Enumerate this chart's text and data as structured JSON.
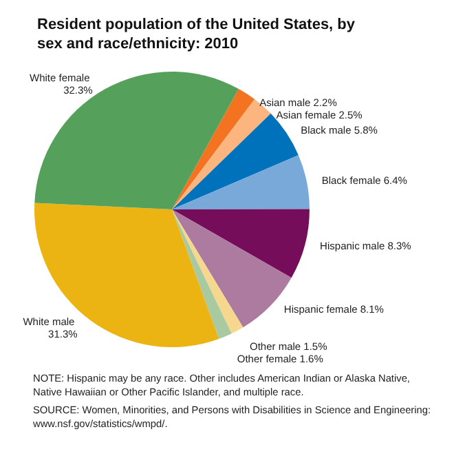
{
  "chart_data": {
    "type": "pie",
    "title": "Resident population of the United States, by sex and race/ethnicity: 2010",
    "categories": [
      "Asian male",
      "Asian female",
      "Black male",
      "Black female",
      "Hispanic male",
      "Hispanic female",
      "Other male",
      "Other female",
      "White male",
      "White female"
    ],
    "values": [
      2.2,
      2.5,
      5.8,
      6.4,
      8.3,
      8.1,
      1.5,
      1.6,
      31.3,
      32.3
    ],
    "colors": [
      "#f47321",
      "#fdb57f",
      "#0072bb",
      "#78a9d8",
      "#760d5a",
      "#ad7aa0",
      "#f5d78e",
      "#a9c9a0",
      "#ebb412",
      "#55a05a"
    ],
    "value_labels": [
      "2.2%",
      "2.5%",
      "5.8%",
      "6.4%",
      "8.3%",
      "8.1%",
      "1.5%",
      "1.6%",
      "31.3%",
      "32.3%"
    ],
    "legend": false,
    "annotations": [
      "NOTE: Hispanic may be any race. Other includes American Indian or Alaska Native, Native Hawaiian or Other Pacific Islander, and multiple race.",
      "SOURCE: Women, Minorities, and Persons with Disabilities in Science and Engineering: www.nsf.gov/statistics/wmpd/."
    ]
  }
}
